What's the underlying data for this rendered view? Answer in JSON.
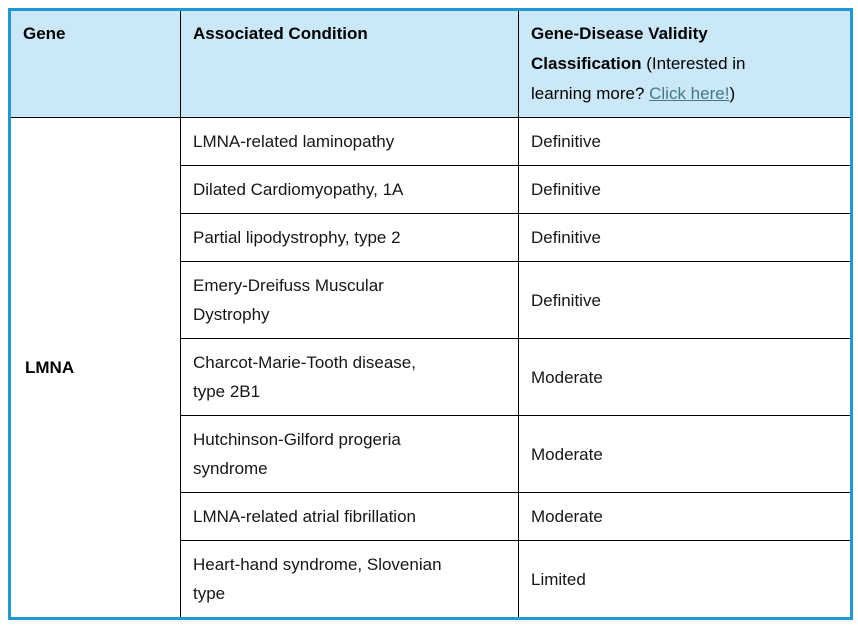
{
  "table": {
    "headers": {
      "gene": "Gene",
      "condition": "Associated Condition",
      "classification_title": "Gene-Disease Validity Classification",
      "note_prefix": " (Interested in learning more? ",
      "link_text": "Click here!",
      "note_suffix": ")"
    },
    "gene_symbol": "LMNA",
    "rows": [
      {
        "condition": "LMNA-related laminopathy",
        "classification": "Definitive"
      },
      {
        "condition": "Dilated Cardiomyopathy, 1A",
        "classification": "Definitive"
      },
      {
        "condition": "Partial lipodystrophy, type 2",
        "classification": "Definitive"
      },
      {
        "condition": "Emery-Dreifuss Muscular Dystrophy",
        "classification": "Definitive"
      },
      {
        "condition": "Charcot-Marie-Tooth disease, type 2B1",
        "classification": "Moderate"
      },
      {
        "condition": "Hutchinson-Gilford progeria syndrome",
        "classification": "Moderate"
      },
      {
        "condition": "LMNA-related atrial fibrillation",
        "classification": "Moderate"
      },
      {
        "condition": "Heart-hand syndrome, Slovenian type",
        "classification": "Limited"
      }
    ],
    "colors": {
      "outer_border": "#2098D4",
      "inner_border": "#000000",
      "header_bg": "#CBE8F8",
      "link": "#467886",
      "text": "#161616",
      "page_bg": "#FFFFFF"
    }
  }
}
